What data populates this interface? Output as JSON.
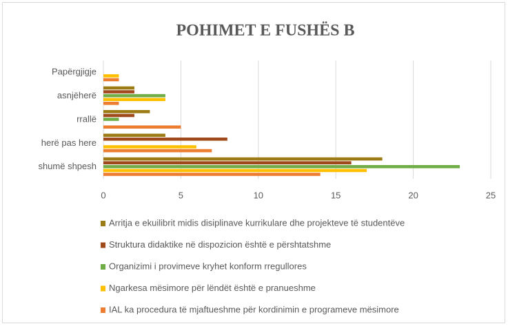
{
  "chart_data": {
    "type": "bar",
    "orientation": "horizontal",
    "title": "POHIMET E FUSHËS B",
    "categories": [
      "shumë shpesh",
      "herë pas here",
      "rrallë",
      "asnjëherë",
      "Papërgjigje"
    ],
    "series": [
      {
        "name": "Arritja e ekuilibrit midis disiplinave kurrikulare dhe projekteve të studentëve",
        "color": "#9c7a14",
        "values": [
          18,
          4,
          3,
          2,
          0
        ]
      },
      {
        "name": "Struktura didaktike në dispozicion është e përshtatshme",
        "color": "#a04a1c",
        "values": [
          16,
          8,
          2,
          2,
          0
        ]
      },
      {
        "name": "Organizimi i provimeve kryhet konform rregullores",
        "color": "#70ad47",
        "values": [
          23,
          0,
          1,
          4,
          0
        ]
      },
      {
        "name": "Ngarkesa mësimore për lëndët është e pranueshme",
        "color": "#ffc000",
        "values": [
          17,
          6,
          0,
          4,
          1
        ]
      },
      {
        "name": "IAL ka procedura të mjaftueshme për kordinimin e programeve mësimore",
        "color": "#ed7d31",
        "values": [
          14,
          7,
          5,
          1,
          1
        ]
      }
    ],
    "xlim": [
      0,
      25
    ],
    "xticks": [
      0,
      5,
      10,
      15,
      20,
      25
    ],
    "grid": true,
    "legend": "bottom"
  }
}
